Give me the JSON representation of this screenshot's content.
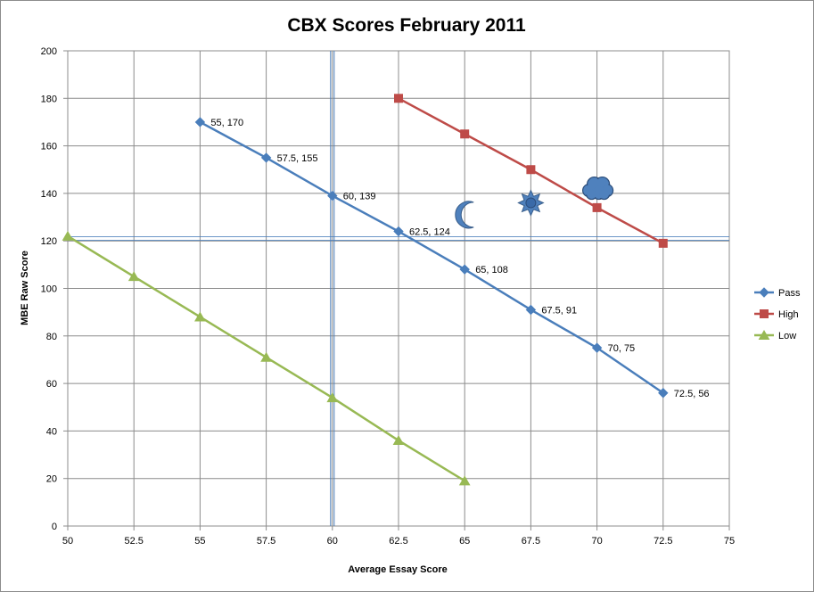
{
  "chart_data": {
    "type": "scatter",
    "title": "CBX Scores February 2011",
    "xlabel": "Average Essay  Score",
    "ylabel": "MBE Raw  Score",
    "xlim": [
      50,
      75
    ],
    "ylim": [
      0,
      200
    ],
    "xticks": [
      "50",
      "52.5",
      "55",
      "57.5",
      "60",
      "62.5",
      "65",
      "67.5",
      "70",
      "72.5",
      "75"
    ],
    "yticks": [
      "0",
      "20",
      "40",
      "60",
      "80",
      "100",
      "120",
      "140",
      "160",
      "180",
      "200"
    ],
    "grid": true,
    "legend_position": "right",
    "series": [
      {
        "name": "Pass",
        "color": "#4a7ebb",
        "marker": "diamond",
        "points": [
          [
            55,
            170
          ],
          [
            57.5,
            155
          ],
          [
            60,
            139
          ],
          [
            62.5,
            124
          ],
          [
            65,
            108
          ],
          [
            67.5,
            91
          ],
          [
            70,
            75
          ],
          [
            72.5,
            56
          ]
        ],
        "labels": [
          "55, 170",
          "57.5, 155",
          "60, 139",
          "62.5, 124",
          "65, 108",
          "67.5, 91",
          "70, 75",
          "72.5, 56"
        ]
      },
      {
        "name": "High",
        "color": "#be4b48",
        "marker": "square",
        "points": [
          [
            62.5,
            180
          ],
          [
            65,
            165
          ],
          [
            67.5,
            150
          ],
          [
            70,
            134
          ],
          [
            72.5,
            119
          ]
        ]
      },
      {
        "name": "Low",
        "color": "#98b954",
        "marker": "triangle",
        "points": [
          [
            50,
            122
          ],
          [
            52.5,
            105
          ],
          [
            55,
            88
          ],
          [
            57.5,
            71
          ],
          [
            60,
            54
          ],
          [
            62.5,
            36
          ],
          [
            65,
            19
          ]
        ]
      }
    ],
    "reference_lines": {
      "vertical_x": 60,
      "horizontal_y": 121,
      "color": "#4a7ebb"
    },
    "decorations": [
      {
        "name": "moon-icon",
        "x": 65,
        "y": 131
      },
      {
        "name": "sun-icon",
        "x": 67.5,
        "y": 136
      },
      {
        "name": "cloud-icon",
        "x": 70,
        "y": 142
      }
    ]
  }
}
